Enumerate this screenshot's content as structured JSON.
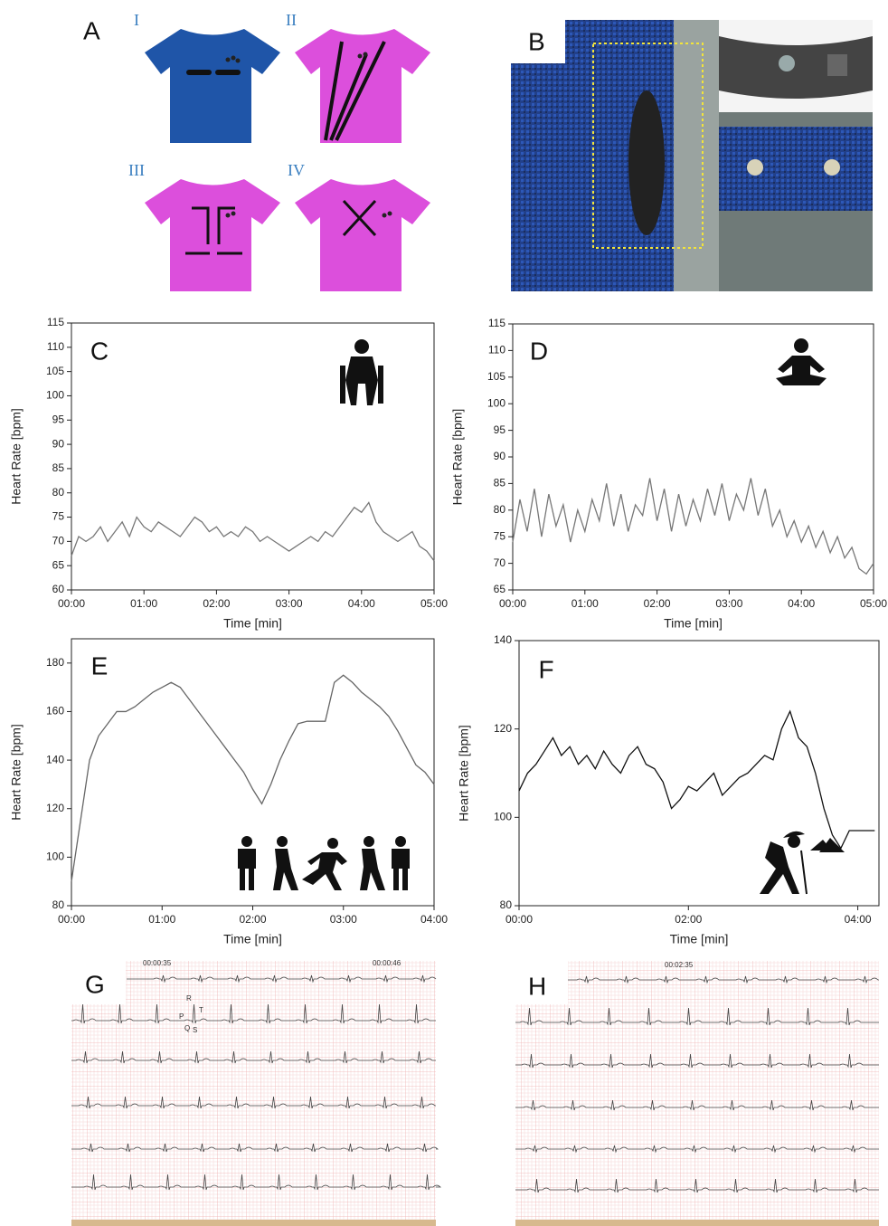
{
  "figure": {
    "panel_a": {
      "label": "A",
      "shirts": [
        "I",
        "II",
        "III",
        "IV"
      ]
    },
    "panel_b": {
      "label": "B"
    },
    "panel_g": {
      "label": "G",
      "timestamps": [
        "00:00:35",
        "00:00:46"
      ],
      "wave_labels": [
        "R",
        "P",
        "T",
        "Q",
        "S"
      ]
    },
    "panel_h": {
      "label": "H",
      "timestamps": [
        "00:02:35"
      ]
    }
  },
  "chart_data": [
    {
      "type": "line",
      "label": "C",
      "xlabel": "Time [min]",
      "ylabel": "Heart Rate [bpm]",
      "color": "#777777",
      "x": [
        0,
        0.1,
        0.2,
        0.3,
        0.4,
        0.5,
        0.6,
        0.7,
        0.8,
        0.9,
        1,
        1.1,
        1.2,
        1.3,
        1.4,
        1.5,
        1.6,
        1.7,
        1.8,
        1.9,
        2,
        2.1,
        2.2,
        2.3,
        2.4,
        2.5,
        2.6,
        2.7,
        2.8,
        2.9,
        3,
        3.1,
        3.2,
        3.3,
        3.4,
        3.5,
        3.6,
        3.7,
        3.8,
        3.9,
        4,
        4.1,
        4.2,
        4.3,
        4.4,
        4.5,
        4.6,
        4.7,
        4.8,
        4.9,
        5
      ],
      "values": [
        67,
        71,
        70,
        71,
        73,
        70,
        72,
        74,
        71,
        75,
        73,
        72,
        74,
        73,
        72,
        71,
        73,
        75,
        74,
        72,
        73,
        71,
        72,
        71,
        73,
        72,
        70,
        71,
        70,
        69,
        68,
        69,
        70,
        71,
        70,
        72,
        71,
        73,
        75,
        77,
        76,
        78,
        74,
        72,
        71,
        70,
        71,
        72,
        69,
        68,
        66
      ],
      "xlim": [
        0,
        5
      ],
      "ylim": [
        60,
        115
      ],
      "xticks": [
        {
          "value": 0,
          "label": "00:00"
        },
        {
          "value": 1,
          "label": "01:00"
        },
        {
          "value": 2,
          "label": "02:00"
        },
        {
          "value": 3,
          "label": "03:00"
        },
        {
          "value": 4,
          "label": "04:00"
        },
        {
          "value": 5,
          "label": "05:00"
        }
      ],
      "yticks": [
        60,
        65,
        70,
        75,
        80,
        85,
        90,
        95,
        100,
        105,
        110,
        115
      ]
    },
    {
      "type": "line",
      "label": "D",
      "xlabel": "Time [min]",
      "ylabel": "Heart Rate [bpm]",
      "color": "#777777",
      "x": [
        0,
        0.1,
        0.2,
        0.3,
        0.4,
        0.5,
        0.6,
        0.7,
        0.8,
        0.9,
        1,
        1.1,
        1.2,
        1.3,
        1.4,
        1.5,
        1.6,
        1.7,
        1.8,
        1.9,
        2,
        2.1,
        2.2,
        2.3,
        2.4,
        2.5,
        2.6,
        2.7,
        2.8,
        2.9,
        3,
        3.1,
        3.2,
        3.3,
        3.4,
        3.5,
        3.6,
        3.7,
        3.8,
        3.9,
        4,
        4.1,
        4.2,
        4.3,
        4.4,
        4.5,
        4.6,
        4.7,
        4.8,
        4.9,
        5
      ],
      "values": [
        74,
        82,
        76,
        84,
        75,
        83,
        77,
        81,
        74,
        80,
        76,
        82,
        78,
        85,
        77,
        83,
        76,
        81,
        79,
        86,
        78,
        84,
        76,
        83,
        77,
        82,
        78,
        84,
        79,
        85,
        78,
        83,
        80,
        86,
        79,
        84,
        77,
        80,
        75,
        78,
        74,
        77,
        73,
        76,
        72,
        75,
        71,
        73,
        69,
        68,
        70
      ],
      "xlim": [
        0,
        5
      ],
      "ylim": [
        65,
        115
      ],
      "xticks": [
        {
          "value": 0,
          "label": "00:00"
        },
        {
          "value": 1,
          "label": "01:00"
        },
        {
          "value": 2,
          "label": "02:00"
        },
        {
          "value": 3,
          "label": "03:00"
        },
        {
          "value": 4,
          "label": "04:00"
        },
        {
          "value": 5,
          "label": "05:00"
        }
      ],
      "yticks": [
        65,
        70,
        75,
        80,
        85,
        90,
        95,
        100,
        105,
        110,
        115
      ]
    },
    {
      "type": "line",
      "label": "E",
      "xlabel": "Time [min]",
      "ylabel": "Heart Rate [bpm]",
      "color": "#666666",
      "x": [
        0,
        0.1,
        0.2,
        0.3,
        0.4,
        0.5,
        0.6,
        0.7,
        0.8,
        0.9,
        1,
        1.1,
        1.2,
        1.3,
        1.4,
        1.5,
        1.6,
        1.7,
        1.8,
        1.9,
        2,
        2.1,
        2.2,
        2.3,
        2.4,
        2.5,
        2.6,
        2.7,
        2.8,
        2.9,
        3,
        3.1,
        3.2,
        3.3,
        3.4,
        3.5,
        3.6,
        3.7,
        3.8,
        3.9,
        4
      ],
      "values": [
        90,
        115,
        140,
        150,
        155,
        160,
        160,
        162,
        165,
        168,
        170,
        172,
        170,
        165,
        160,
        155,
        150,
        145,
        140,
        135,
        128,
        122,
        130,
        140,
        148,
        155,
        156,
        156,
        156,
        172,
        175,
        172,
        168,
        165,
        162,
        158,
        152,
        145,
        138,
        135,
        130
      ],
      "xlim": [
        0,
        4
      ],
      "ylim": [
        80,
        190
      ],
      "xticks": [
        {
          "value": 0,
          "label": "00:00"
        },
        {
          "value": 1,
          "label": "01:00"
        },
        {
          "value": 2,
          "label": "02:00"
        },
        {
          "value": 3,
          "label": "03:00"
        },
        {
          "value": 4,
          "label": "04:00"
        }
      ],
      "yticks": [
        80,
        100,
        120,
        140,
        160,
        180
      ]
    },
    {
      "type": "line",
      "label": "F",
      "xlabel": "Time [min]",
      "ylabel": "Heart Rate [bpm]",
      "color": "#111111",
      "x": [
        0,
        0.1,
        0.2,
        0.3,
        0.4,
        0.5,
        0.6,
        0.7,
        0.8,
        0.9,
        1,
        1.1,
        1.2,
        1.3,
        1.4,
        1.5,
        1.6,
        1.7,
        1.8,
        1.9,
        2,
        2.1,
        2.2,
        2.3,
        2.4,
        2.5,
        2.6,
        2.7,
        2.8,
        2.9,
        3,
        3.1,
        3.2,
        3.3,
        3.4,
        3.5,
        3.6,
        3.7,
        3.8,
        3.9,
        4,
        4.1,
        4.2
      ],
      "values": [
        106,
        110,
        112,
        115,
        118,
        114,
        116,
        112,
        114,
        111,
        115,
        112,
        110,
        114,
        116,
        112,
        111,
        108,
        102,
        104,
        107,
        106,
        108,
        110,
        105,
        107,
        109,
        110,
        112,
        114,
        113,
        120,
        124,
        118,
        116,
        110,
        102,
        96,
        93,
        97,
        97,
        97,
        97
      ],
      "xlim": [
        0,
        4.25
      ],
      "ylim": [
        80,
        140
      ],
      "xticks": [
        {
          "value": 0,
          "label": "00:00"
        },
        {
          "value": 2,
          "label": "02:00"
        },
        {
          "value": 4,
          "label": "04:00"
        }
      ],
      "yticks": [
        80,
        100,
        120,
        140
      ]
    }
  ]
}
